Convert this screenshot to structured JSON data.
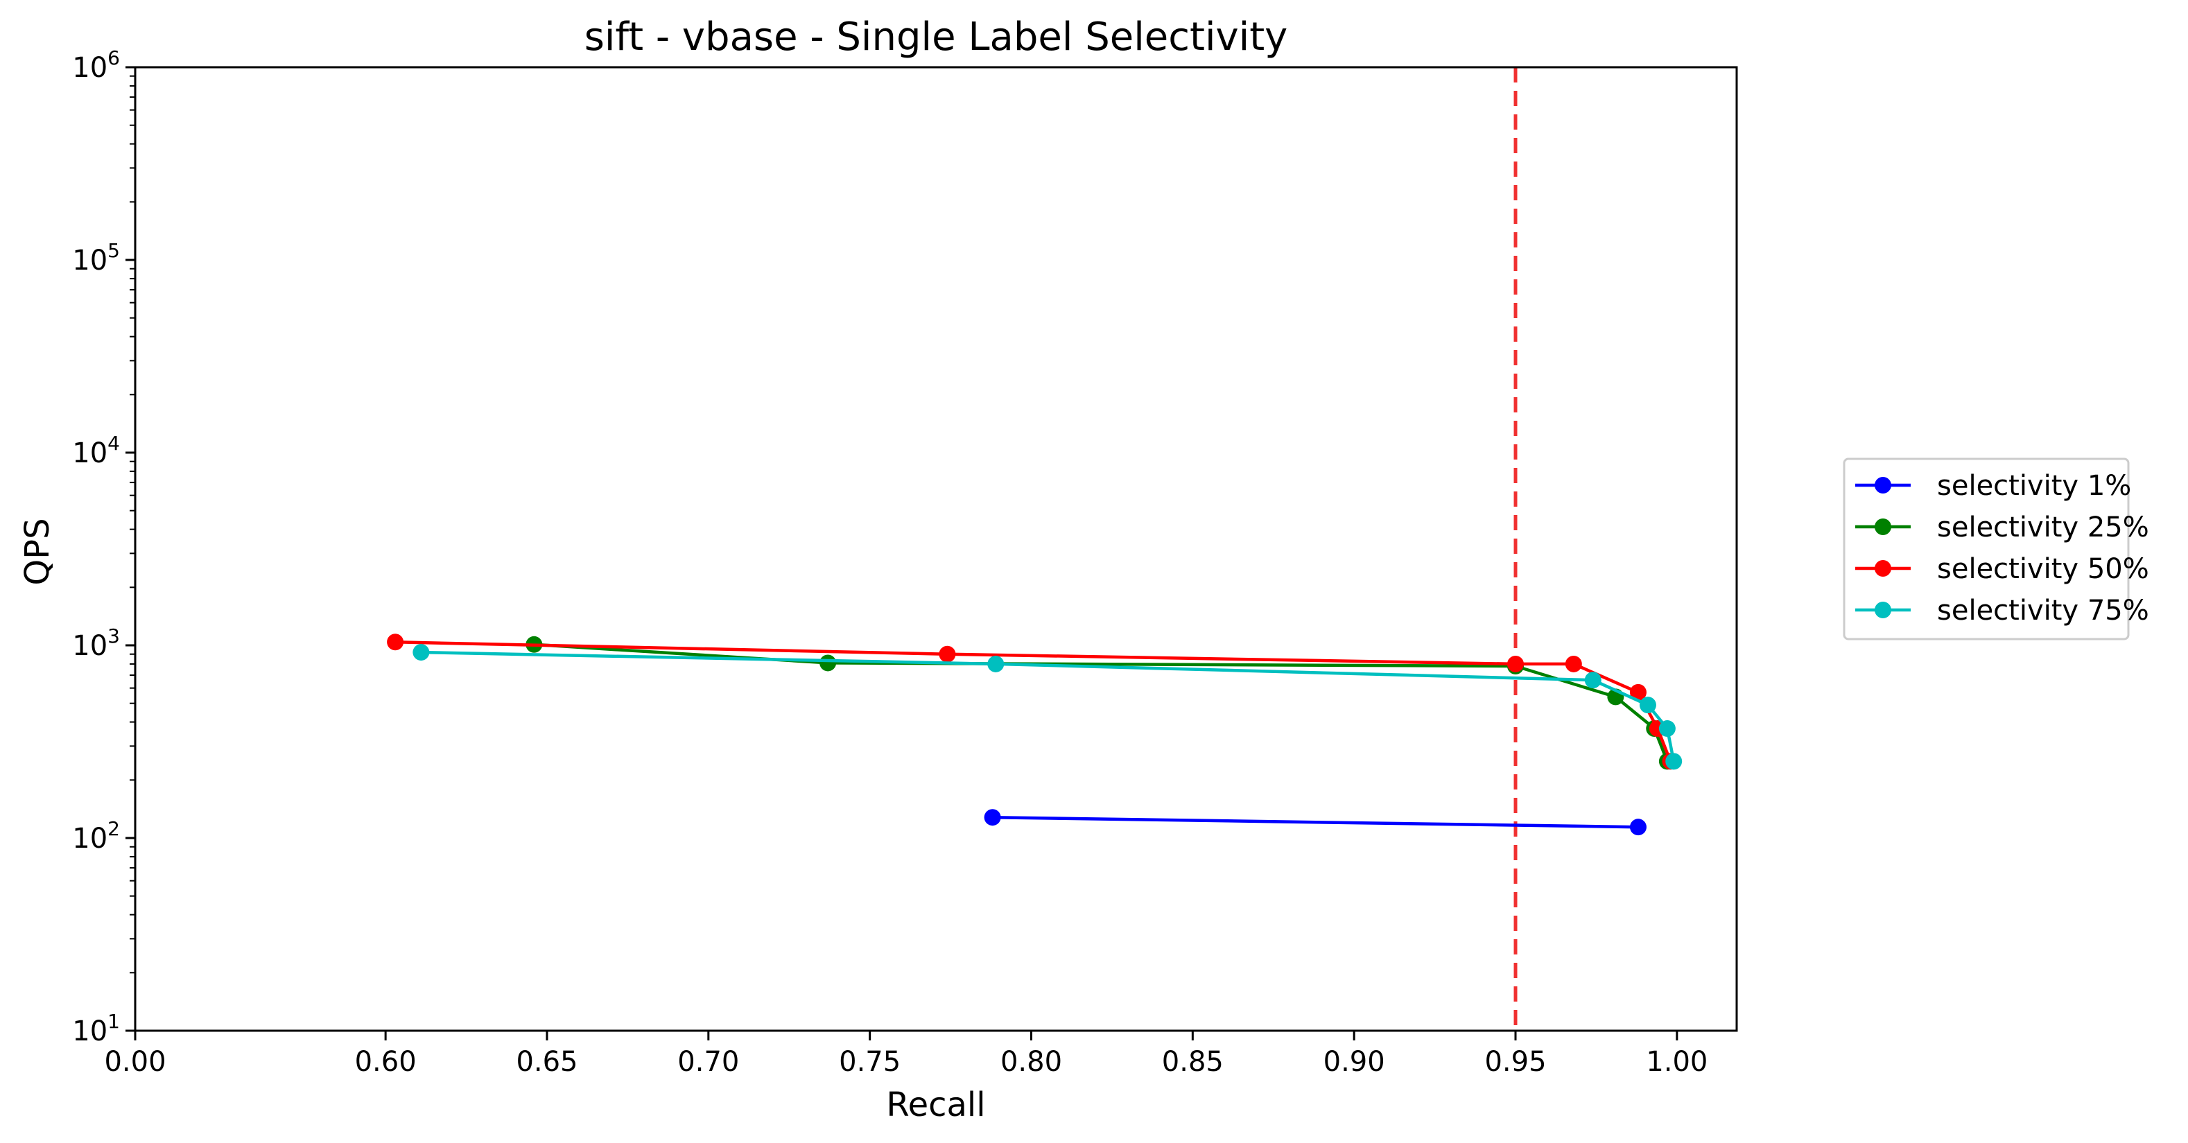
{
  "chart_data": {
    "type": "line",
    "title": "sift - vbase - Single Label Selectivity",
    "xlabel": "Recall",
    "ylabel": "QPS",
    "xlim": [
      0.0,
      1.0185
    ],
    "ylim": [
      10,
      1000000
    ],
    "yscale": "log",
    "x_ticks": [
      {
        "value": 0.0,
        "label": "0.00"
      },
      {
        "value": 0.6,
        "label": "0.60"
      },
      {
        "value": 0.65,
        "label": "0.65"
      },
      {
        "value": 0.7,
        "label": "0.70"
      },
      {
        "value": 0.75,
        "label": "0.75"
      },
      {
        "value": 0.8,
        "label": "0.80"
      },
      {
        "value": 0.85,
        "label": "0.85"
      },
      {
        "value": 0.9,
        "label": "0.90"
      },
      {
        "value": 0.95,
        "label": "0.95"
      },
      {
        "value": 1.0,
        "label": "1.00"
      }
    ],
    "x_axis_break": {
      "from": 0.0,
      "to": 0.5873
    },
    "y_ticks": [
      {
        "value": 10,
        "base": "10",
        "exp": "1"
      },
      {
        "value": 100,
        "base": "10",
        "exp": "2"
      },
      {
        "value": 1000,
        "base": "10",
        "exp": "3"
      },
      {
        "value": 10000,
        "base": "10",
        "exp": "4"
      },
      {
        "value": 100000,
        "base": "10",
        "exp": "5"
      },
      {
        "value": 1000000,
        "base": "10",
        "exp": "6"
      }
    ],
    "reference_line": {
      "x": 0.95,
      "color": "#f03030",
      "style": "dashed"
    },
    "grid": false,
    "legend_position": "outside right",
    "series": [
      {
        "name": "selectivity 1%",
        "color": "#0000ff",
        "points": [
          [
            0.788,
            128
          ],
          [
            0.988,
            114
          ]
        ]
      },
      {
        "name": "selectivity 25%",
        "color": "#008000",
        "points": [
          [
            0.646,
            1010
          ],
          [
            0.737,
            810
          ],
          [
            0.95,
            780
          ],
          [
            0.981,
            540
          ],
          [
            0.993,
            370
          ],
          [
            0.997,
            250
          ]
        ]
      },
      {
        "name": "selectivity 50%",
        "color": "#ff0000",
        "points": [
          [
            0.603,
            1040
          ],
          [
            0.774,
            900
          ],
          [
            0.95,
            800
          ],
          [
            0.968,
            800
          ],
          [
            0.988,
            570
          ],
          [
            0.994,
            370
          ],
          [
            0.998,
            250
          ]
        ]
      },
      {
        "name": "selectivity 75%",
        "color": "#00bfbf",
        "points": [
          [
            0.611,
            920
          ],
          [
            0.789,
            800
          ],
          [
            0.974,
            660
          ],
          [
            0.991,
            490
          ],
          [
            0.997,
            370
          ],
          [
            0.999,
            250
          ]
        ]
      }
    ]
  }
}
